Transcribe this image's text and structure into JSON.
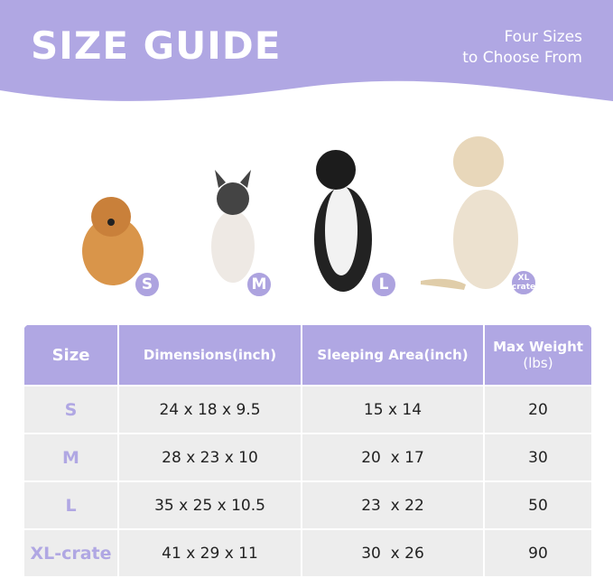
{
  "banner": {
    "title": "SIZE GUIDE",
    "subtitle_line1": "Four Sizes",
    "subtitle_line2": "to Choose From",
    "color": "#b0a7e3"
  },
  "dogs": [
    {
      "badge": "S"
    },
    {
      "badge": "M"
    },
    {
      "badge": "L"
    },
    {
      "badge_line1": "XL",
      "badge_line2": "crate"
    }
  ],
  "table": {
    "headers": [
      "Size",
      "Dimensions(inch)",
      "Sleeping Area(inch)",
      "Max Weight",
      "(lbs)"
    ],
    "rows": [
      {
        "size": "S",
        "dimensions": "24 x 18 x 9.5",
        "sleeping_area": "15 x 14",
        "max_weight": "20"
      },
      {
        "size": "M",
        "dimensions": "28 x 23 x 10",
        "sleeping_area": "20  x 17",
        "max_weight": "30"
      },
      {
        "size": "L",
        "dimensions": "35 x 25 x 10.5",
        "sleeping_area": "23  x 22",
        "max_weight": "50"
      },
      {
        "size": "XL-crate",
        "dimensions": "41 x 29 x 11",
        "sleeping_area": "30  x 26",
        "max_weight": "90"
      }
    ]
  }
}
